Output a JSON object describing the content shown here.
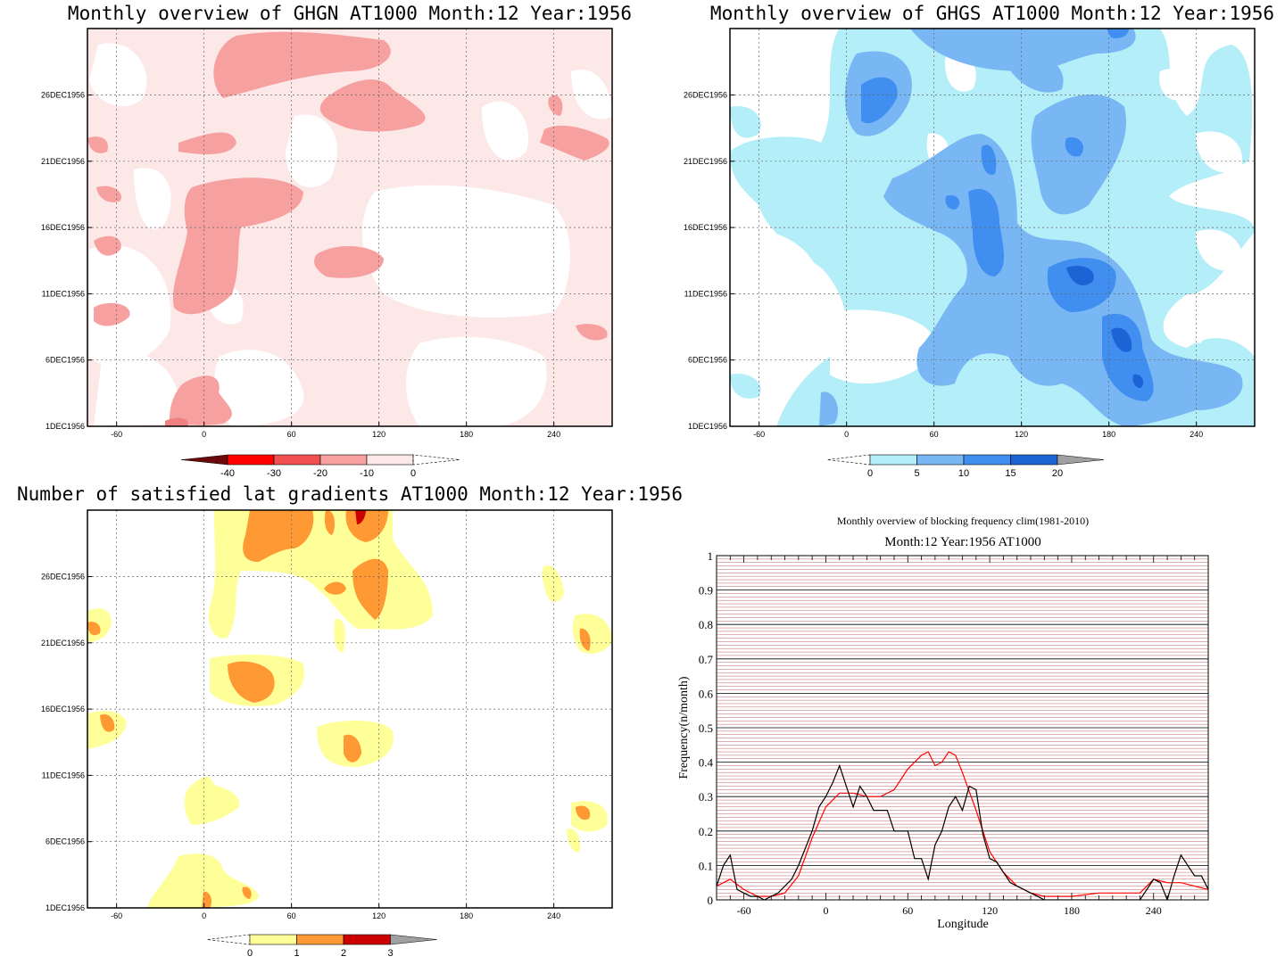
{
  "chart_data": [
    {
      "type": "heatmap",
      "title": "Monthly overview of GHGN AT1000 Month:12 Year:1956",
      "y_ticks": [
        "1DEC1956",
        "6DEC1956",
        "11DEC1956",
        "16DEC1956",
        "21DEC1956",
        "26DEC1956"
      ],
      "x_ticks": [
        "-60",
        "0",
        "60",
        "120",
        "180",
        "240"
      ],
      "xlim": [
        -80,
        280
      ],
      "colorbar": {
        "labels": [
          "-40",
          "-30",
          "-20",
          "-10",
          "0"
        ],
        "colors": [
          "#6b0a0a",
          "#ff0000",
          "#f05050",
          "#f7a0a0",
          "#fde8e8"
        ]
      },
      "colors": {
        "white": "#ffffff",
        "c1": "#fde8e8",
        "c2": "#f7a0a0",
        "c3": "#f08080"
      }
    },
    {
      "type": "heatmap",
      "title": "Monthly overview of GHGS AT1000 Month:12 Year:1956",
      "y_ticks": [
        "1DEC1956",
        "6DEC1956",
        "11DEC1956",
        "16DEC1956",
        "21DEC1956",
        "26DEC1956"
      ],
      "x_ticks": [
        "-60",
        "0",
        "60",
        "120",
        "180",
        "240"
      ],
      "xlim": [
        -80,
        280
      ],
      "colorbar": {
        "labels": [
          "0",
          "5",
          "10",
          "15",
          "20"
        ],
        "colors": [
          "#b4eef8",
          "#78b7f3",
          "#3f8ef0",
          "#1c63d6",
          "#a0a0a0"
        ]
      },
      "colors": {
        "white": "#ffffff",
        "c1": "#b4eef8",
        "c2": "#78b7f3",
        "c3": "#3f8ef0",
        "c4": "#1c63d6"
      }
    },
    {
      "type": "heatmap",
      "title": "Number of satisfied lat gradients AT1000 Month:12 Year:1956",
      "y_ticks": [
        "1DEC1956",
        "6DEC1956",
        "11DEC1956",
        "16DEC1956",
        "21DEC1956",
        "26DEC1956"
      ],
      "x_ticks": [
        "-60",
        "0",
        "60",
        "120",
        "180",
        "240"
      ],
      "xlim": [
        -80,
        280
      ],
      "colorbar": {
        "labels": [
          "0",
          "1",
          "2",
          "3"
        ],
        "colors": [
          "#ffff99",
          "#ff9933",
          "#cc0000",
          "#a0a0a0"
        ]
      },
      "colors": {
        "white": "#ffffff",
        "c1": "#ffff99",
        "c2": "#ff9933",
        "c3": "#cc0000"
      }
    },
    {
      "type": "line",
      "title": "Monthly overview of blocking frequency clim(1981-2010)",
      "subtitle": "Month:12 Year:1956  AT1000",
      "xlabel": "Longitude",
      "ylabel": "Frequency(n/month)",
      "xlim": [
        -80,
        280
      ],
      "ylim": [
        0,
        1
      ],
      "x_ticks": [
        "-60",
        "0",
        "60",
        "120",
        "180",
        "240"
      ],
      "y_ticks": [
        "0",
        "0.1",
        "0.2",
        "0.3",
        "0.4",
        "0.5",
        "0.6",
        "0.7",
        "0.8",
        "0.9",
        "1"
      ],
      "series": [
        {
          "color": "#000000",
          "x": [
            -80,
            -75,
            -70,
            -65,
            -60,
            -55,
            -50,
            -45,
            -40,
            -35,
            -30,
            -25,
            -20,
            -15,
            -10,
            -5,
            0,
            5,
            10,
            15,
            20,
            25,
            30,
            35,
            40,
            45,
            50,
            55,
            60,
            65,
            70,
            75,
            80,
            85,
            90,
            95,
            100,
            105,
            110,
            115,
            120,
            125,
            130,
            135,
            140,
            145,
            150,
            155,
            160,
            170,
            180,
            190,
            200,
            210,
            220,
            230,
            240,
            245,
            250,
            255,
            260,
            265,
            270,
            275,
            280
          ],
          "y": [
            0.04,
            0.1,
            0.13,
            0.03,
            0.02,
            0.01,
            0.01,
            0.0,
            0.01,
            0.02,
            0.04,
            0.06,
            0.1,
            0.15,
            0.2,
            0.27,
            0.3,
            0.34,
            0.39,
            0.33,
            0.27,
            0.33,
            0.3,
            0.26,
            0.26,
            0.26,
            0.2,
            0.2,
            0.2,
            0.12,
            0.12,
            0.06,
            0.16,
            0.2,
            0.27,
            0.3,
            0.26,
            0.33,
            0.32,
            0.19,
            0.12,
            0.11,
            0.08,
            0.05,
            0.04,
            0.03,
            0.02,
            0.01,
            0.0,
            0.0,
            0.0,
            0.0,
            0.0,
            0.0,
            0.0,
            0.0,
            0.06,
            0.05,
            0.0,
            0.07,
            0.13,
            0.1,
            0.07,
            0.07,
            0.03
          ]
        },
        {
          "color": "#ff0000",
          "x": [
            -80,
            -70,
            -60,
            -50,
            -40,
            -30,
            -20,
            -10,
            0,
            10,
            20,
            30,
            40,
            50,
            60,
            70,
            75,
            80,
            85,
            90,
            95,
            100,
            110,
            120,
            130,
            140,
            150,
            160,
            180,
            200,
            220,
            230,
            240,
            250,
            260,
            270,
            280
          ],
          "y": [
            0.04,
            0.06,
            0.03,
            0.01,
            0.01,
            0.02,
            0.07,
            0.18,
            0.27,
            0.31,
            0.31,
            0.3,
            0.3,
            0.32,
            0.38,
            0.42,
            0.43,
            0.39,
            0.4,
            0.43,
            0.42,
            0.37,
            0.26,
            0.14,
            0.08,
            0.04,
            0.02,
            0.01,
            0.01,
            0.02,
            0.02,
            0.02,
            0.06,
            0.05,
            0.05,
            0.04,
            0.03
          ]
        }
      ]
    }
  ]
}
